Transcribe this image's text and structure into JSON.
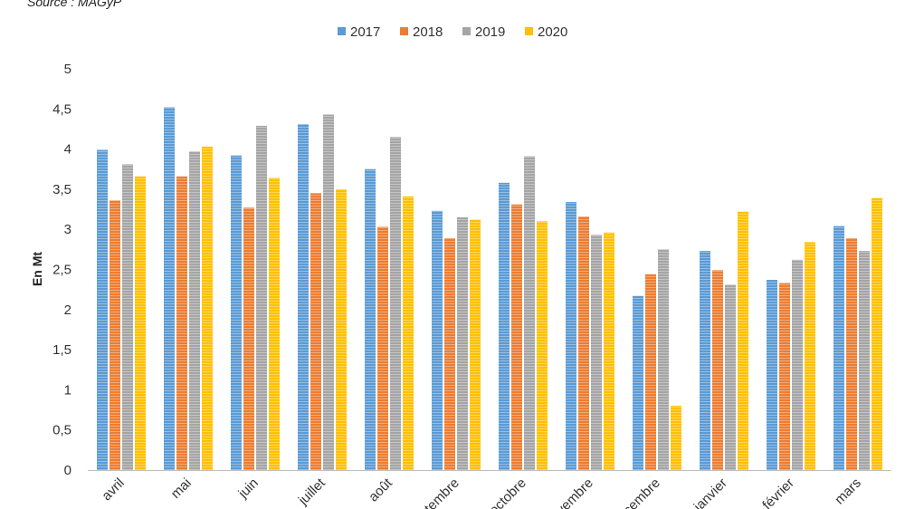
{
  "source_note": "Source : MAGyP",
  "chart_data": {
    "type": "bar",
    "ylabel": "En Mt",
    "xlabel": "",
    "ylim": [
      0,
      5
    ],
    "yticks": [
      "0",
      "0,5",
      "1",
      "1,5",
      "2",
      "2,5",
      "3",
      "3,5",
      "4",
      "4,5",
      "5"
    ],
    "grid": false,
    "legend_position": "top",
    "categories": [
      "avril",
      "mai",
      "juin",
      "juillet",
      "août",
      "septembre",
      "octobre",
      "novembre",
      "décembre",
      "janvier",
      "février",
      "mars"
    ],
    "series": [
      {
        "name": "2017",
        "color": "#5b9bd5",
        "values": [
          3.99,
          4.52,
          3.92,
          4.31,
          3.75,
          3.23,
          3.58,
          3.34,
          2.17,
          2.73,
          2.37,
          3.04
        ]
      },
      {
        "name": "2018",
        "color": "#ed7d31",
        "values": [
          3.36,
          3.66,
          3.27,
          3.45,
          3.03,
          2.89,
          3.31,
          3.16,
          2.44,
          2.49,
          2.33,
          2.89
        ]
      },
      {
        "name": "2019",
        "color": "#a5a5a5",
        "values": [
          3.81,
          3.97,
          4.29,
          4.43,
          4.15,
          3.15,
          3.91,
          2.93,
          2.75,
          2.31,
          2.62,
          2.73
        ]
      },
      {
        "name": "2020",
        "color": "#ffc000",
        "values": [
          3.66,
          4.03,
          3.64,
          3.5,
          3.41,
          3.12,
          3.1,
          2.96,
          0.8,
          3.22,
          2.84,
          3.39
        ]
      }
    ]
  }
}
